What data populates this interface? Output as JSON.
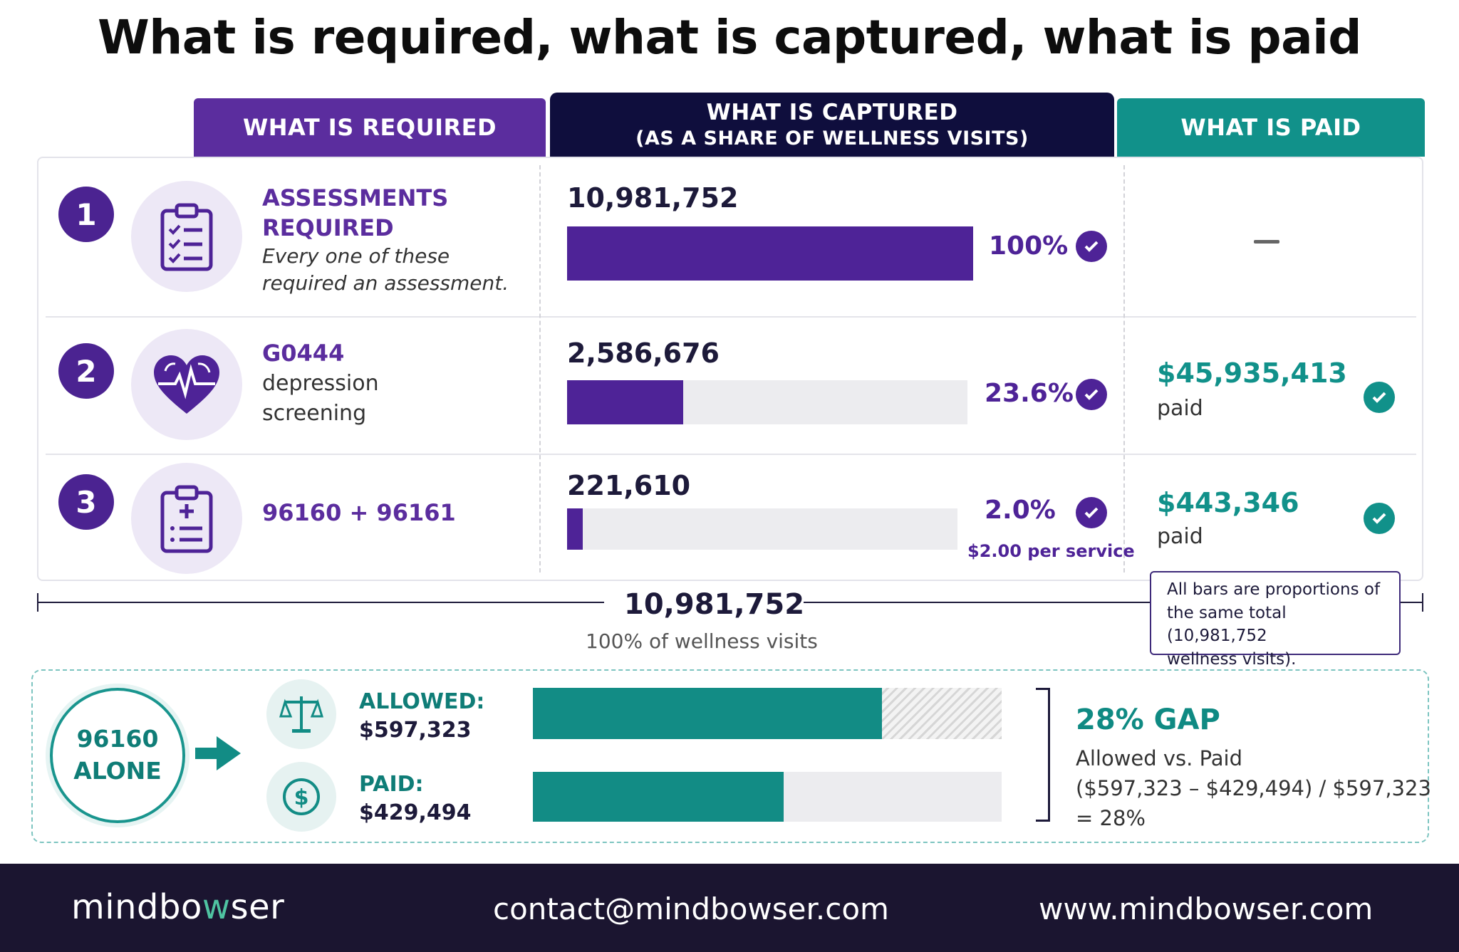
{
  "title": "What is required, what is captured, what is paid",
  "headers": {
    "required": "WHAT IS REQUIRED",
    "captured_line1": "WHAT IS CAPTURED",
    "captured_line2": "(AS A SHARE OF WELLNESS VISITS)",
    "paid": "WHAT IS PAID"
  },
  "rows": [
    {
      "number": "1",
      "icon": "clipboard-checklist-icon",
      "title_line1": "ASSESSMENTS",
      "title_line2": "REQUIRED",
      "subtitle_line1": "Every one of these",
      "subtitle_line2": "required an assessment.",
      "count": "10,981,752",
      "percent_label": "100%",
      "share": 1.0,
      "paid": "—",
      "paid_label": ""
    },
    {
      "number": "2",
      "icon": "heart-pulse-icon",
      "title_line1": "G0444",
      "subtitle_line1": "depression",
      "subtitle_line2": "screening",
      "count": "2,586,676",
      "percent_label": "23.6%",
      "share": 0.236,
      "paid": "$45,935,413",
      "paid_label": "paid"
    },
    {
      "number": "3",
      "icon": "clipboard-plus-icon",
      "title_line1": "96160 + 96161",
      "count": "221,610",
      "percent_label": "2.0%",
      "share": 0.02,
      "per_service": "$2.00 per service",
      "paid": "$443,346",
      "paid_label": "paid"
    }
  ],
  "scale": {
    "total": "10,981,752",
    "subtitle": "100% of wellness visits",
    "note_line1": "All bars are proportions of",
    "note_line2": "the same total (10,981,752",
    "note_line3": "wellness visits)."
  },
  "comparison": {
    "circle_line1": "96160",
    "circle_line2": "ALONE",
    "allowed_label": "ALLOWED:",
    "allowed_value": "$597,323",
    "paid_label": "PAID:",
    "paid_value": "$429,494",
    "gap_title": "28% GAP",
    "gap_line1": "Allowed vs. Paid",
    "gap_line2": "($597,323 – $429,494) / $597,323",
    "gap_line3": "= 28%"
  },
  "chart_data": {
    "type": "bar",
    "title": "What is required, what is captured, what is paid",
    "categories": [
      "ASSESSMENTS REQUIRED",
      "G0444",
      "96160 + 96161"
    ],
    "series": [
      {
        "name": "WHAT IS CAPTURED",
        "values": [
          10981752,
          2586676,
          221610
        ]
      },
      {
        "name": "WHAT IS PAID",
        "values": [
          null,
          45935413,
          443346
        ]
      }
    ],
    "share_of_wellness_visits": [
      100,
      23.6,
      2.0
    ],
    "total": 10981752,
    "comparison": {
      "categories": [
        "ALLOWED",
        "PAID"
      ],
      "values": [
        597323,
        429494
      ],
      "gap_percent": 28
    }
  },
  "colors": {
    "purple": "#4e2397",
    "navy": "#0f0e3d",
    "teal": "#11918a"
  },
  "footer": {
    "logo_part1": "mindbo",
    "logo_part2": "w",
    "logo_part3": "ser",
    "email": "contact@mindbowser.com",
    "website": "www.mindbowser.com"
  }
}
